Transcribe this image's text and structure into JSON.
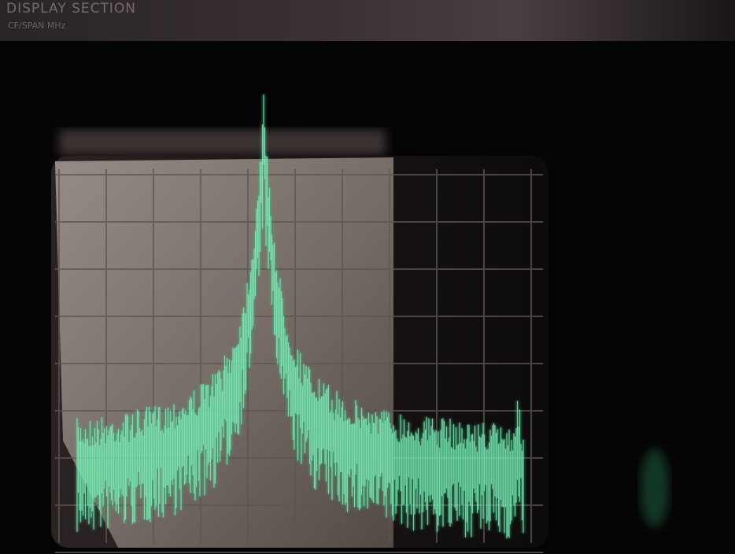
{
  "header": {
    "title": "DISPLAY SECTION",
    "subtitle": "CF/SPAN MHz"
  }
}
